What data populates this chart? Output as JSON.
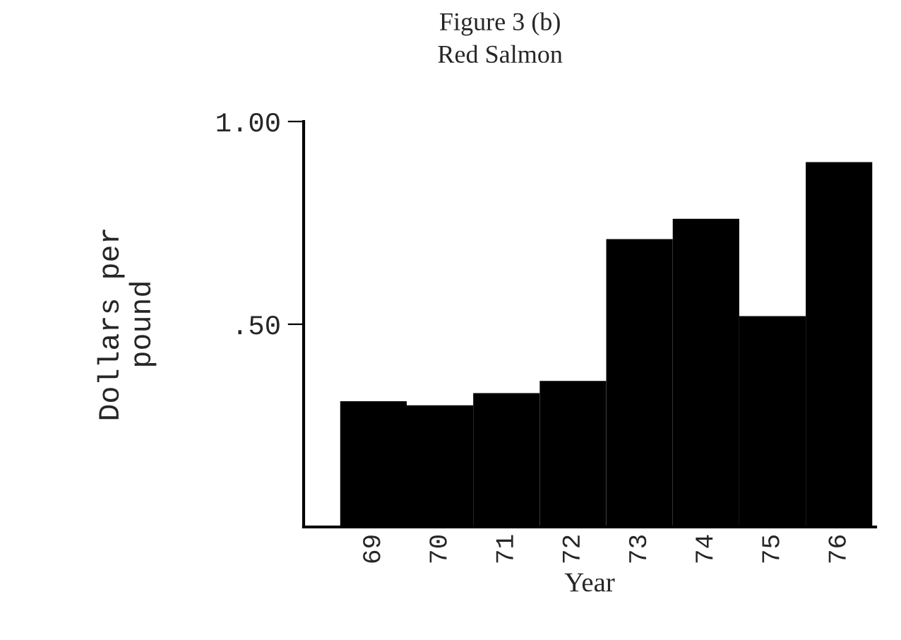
{
  "chart_data": {
    "type": "bar",
    "title": "Figure 3 (b)",
    "subtitle": "Red Salmon",
    "xlabel": "Year",
    "ylabel": "Dollars per\npound",
    "categories": [
      "69",
      "70",
      "71",
      "72",
      "73",
      "74",
      "75",
      "76"
    ],
    "values": [
      0.31,
      0.3,
      0.33,
      0.36,
      0.71,
      0.76,
      0.52,
      0.9
    ],
    "color": "#000000",
    "ylim": [
      0,
      1.0
    ],
    "yticks": [
      {
        "value": 0.5,
        "label": ".50"
      },
      {
        "value": 1.0,
        "label": "1.00"
      }
    ],
    "grid": false
  }
}
